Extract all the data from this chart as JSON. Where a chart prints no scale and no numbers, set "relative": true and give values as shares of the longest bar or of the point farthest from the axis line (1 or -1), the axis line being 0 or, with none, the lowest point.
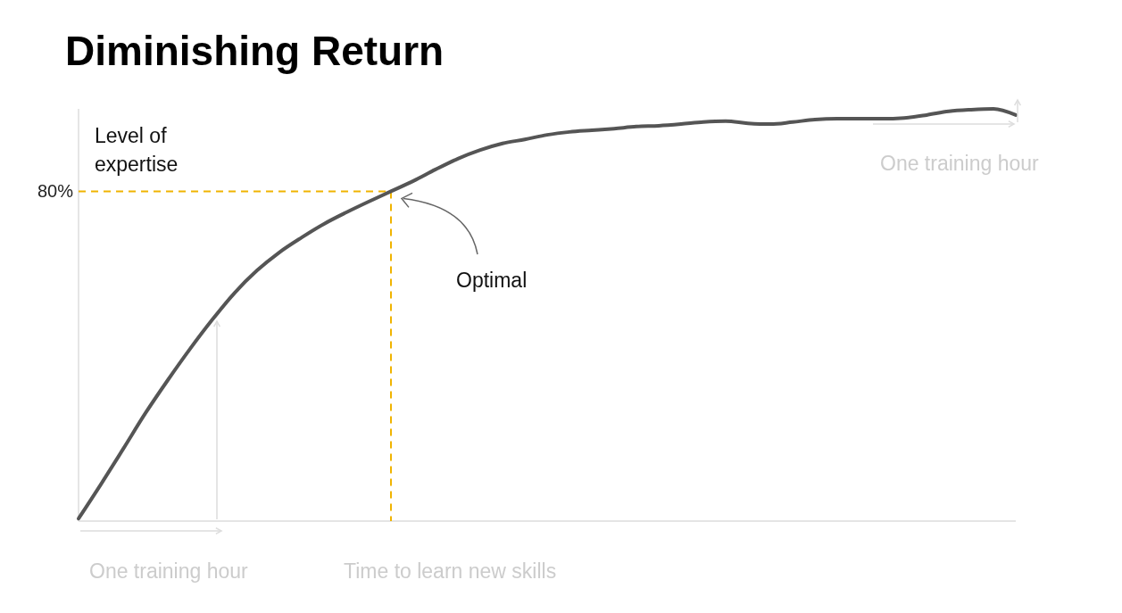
{
  "chart_data": {
    "type": "line",
    "title": "Diminishing Return",
    "xlabel": "Time to learn new skills",
    "ylabel": "Level of expertise",
    "relative": true,
    "categories": [
      null,
      null,
      null,
      null,
      null,
      null,
      null,
      null,
      null,
      null,
      null,
      null,
      null,
      null,
      null,
      null,
      null,
      null,
      null,
      null,
      null,
      null,
      null,
      null,
      null,
      null,
      null,
      null,
      null,
      null,
      null,
      null,
      null,
      null,
      null,
      null,
      null,
      null,
      null,
      null,
      null,
      null,
      null
    ],
    "series": [
      {
        "color": "#555555",
        "values": [
          0.006,
          0.089,
          0.175,
          0.262,
          0.342,
          0.418,
          0.489,
          0.554,
          0.608,
          0.652,
          0.688,
          0.721,
          0.749,
          0.775,
          0.8,
          0.825,
          0.853,
          0.879,
          0.9,
          0.916,
          0.926,
          0.937,
          0.944,
          0.948,
          0.952,
          0.957,
          0.959,
          0.963,
          0.968,
          0.97,
          0.965,
          0.963,
          0.968,
          0.974,
          0.976,
          0.976,
          0.976,
          0.978,
          0.985,
          0.994,
          0.998,
          1,
          0.985
        ]
      }
    ],
    "ref_lines": [
      {
        "axis": "y",
        "value": 0.8,
        "label": "80%",
        "color": "#f0b400",
        "line_style": "dashed"
      }
    ],
    "annotations": [
      "Optimal",
      "One training hour",
      "One training hour"
    ]
  }
}
